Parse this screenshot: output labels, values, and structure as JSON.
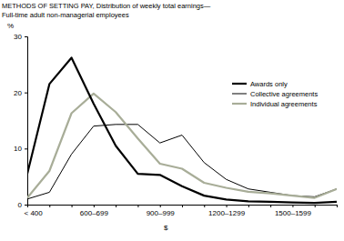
{
  "chart_data": {
    "type": "line",
    "title": "METHODS OF SETTING PAY, Distribution of weekly total earnings—",
    "subtitle": "Full-time adult non-managerial employees",
    "x_label": "$",
    "y_label": "%",
    "categories": [
      "< 400",
      null,
      null,
      "600–699",
      null,
      null,
      "900–999",
      null,
      null,
      "1200–1299",
      null,
      null,
      "1500–1599",
      null,
      null
    ],
    "series": [
      {
        "name": "Awards only",
        "color": "#000000",
        "line_style": "thick",
        "values": [
          5.5,
          21.5,
          26.2,
          18,
          10.5,
          5.5,
          5.3,
          3.3,
          1.6,
          0.9,
          0.6,
          0.5,
          0.4,
          0.3,
          0.5
        ]
      },
      {
        "name": "Collective agreements",
        "color": "#000000",
        "line_style": "thin",
        "values": [
          1,
          2.2,
          9,
          14,
          14.3,
          14.3,
          11,
          12.4,
          7.5,
          4.5,
          2.8,
          2.2,
          1.6,
          1.4,
          2.8
        ]
      },
      {
        "name": "Individual agreements",
        "color": "#a8ad98",
        "line_style": "thick",
        "values": [
          1.2,
          6,
          16.3,
          19.8,
          16.5,
          11.8,
          7.3,
          6.4,
          3.9,
          3,
          2.3,
          2,
          1.6,
          1.2,
          2.8
        ]
      }
    ],
    "ylim": [
      0,
      30
    ],
    "yticks": [
      0,
      10,
      20,
      30
    ],
    "grid": false,
    "legend": "right"
  }
}
